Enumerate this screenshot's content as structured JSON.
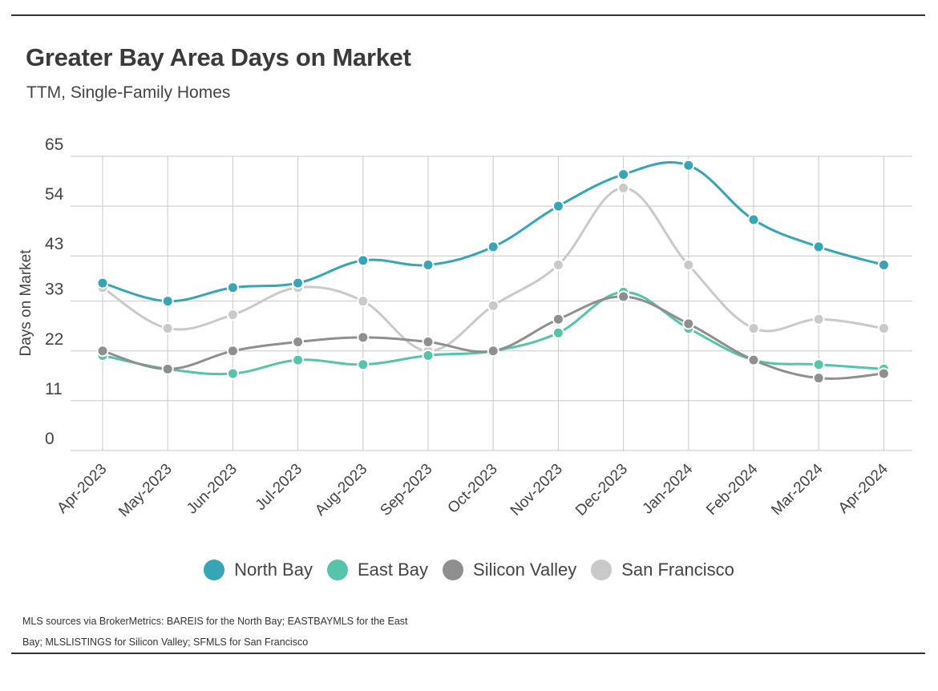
{
  "title": "Greater Bay Area Days on Market",
  "subtitle": "TTM, Single-Family Homes",
  "source": "MLS sources via BrokerMetrics: BAREIS for the North Bay; EASTBAYMLS for the East Bay; MLSLISTINGS for Silicon Valley; SFMLS for San Francisco",
  "chart_data": {
    "type": "line",
    "title": "Greater Bay Area Days on Market",
    "ylabel": "Days on Market",
    "xlabel": "",
    "ylim": [
      0,
      65
    ],
    "yticks": [
      "0",
      "11",
      "22",
      "33",
      "43",
      "54",
      "65"
    ],
    "ytick_values": [
      0,
      11,
      22,
      33,
      43,
      54,
      65
    ],
    "categories": [
      "Apr-2023",
      "May-2023",
      "Jun-2023",
      "Jul-2023",
      "Aug-2023",
      "Sep-2023",
      "Oct-2023",
      "Nov-2023",
      "Dec-2023",
      "Jan-2024",
      "Feb-2024",
      "Mar-2024",
      "Apr-2024"
    ],
    "legend_position": "bottom",
    "series": [
      {
        "name": "San Francisco",
        "color": "#c9c9c9",
        "values": [
          36,
          27,
          30,
          36,
          33,
          22,
          32,
          41,
          58,
          41,
          27,
          29,
          27
        ]
      },
      {
        "name": "East Bay",
        "color": "#55c4ab",
        "values": [
          21,
          18,
          17,
          20,
          19,
          21,
          22,
          26,
          35,
          27,
          20,
          19,
          18
        ]
      },
      {
        "name": "Silicon Valley",
        "color": "#8f8f8f",
        "values": [
          22,
          18,
          22,
          24,
          25,
          24,
          22,
          29,
          34,
          28,
          20,
          16,
          17
        ]
      },
      {
        "name": "North Bay",
        "color": "#36a5b5",
        "values": [
          37,
          33,
          36,
          37,
          42,
          41,
          45,
          54,
          61,
          63,
          51,
          45,
          41
        ]
      }
    ],
    "legend_order": [
      "North Bay",
      "East Bay",
      "Silicon Valley",
      "San Francisco"
    ]
  }
}
